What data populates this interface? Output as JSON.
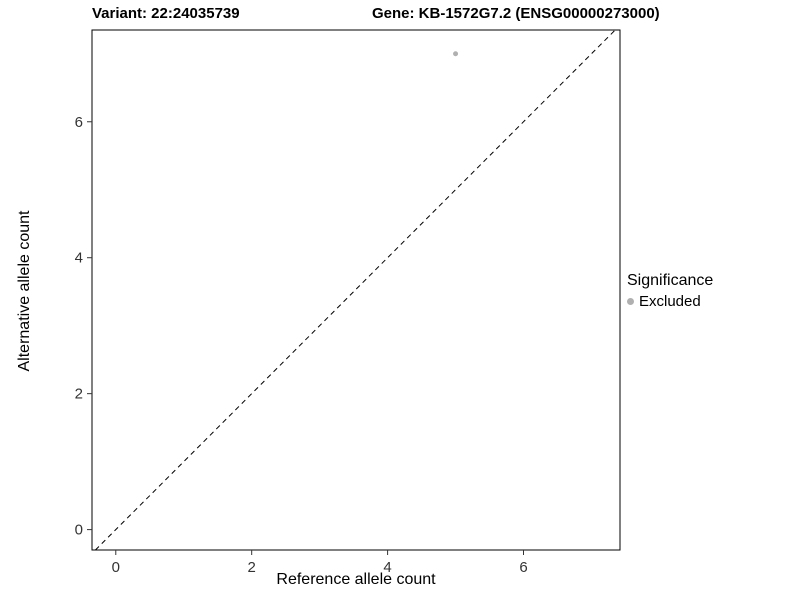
{
  "chart_data": {
    "type": "scatter",
    "title_left": "Variant: 22:24035739",
    "title_right": "Gene: KB-1572G7.2 (ENSG00000273000)",
    "xlabel": "Reference allele count",
    "ylabel": "Alternative allele count",
    "xlim": [
      -0.35,
      7.42
    ],
    "ylim": [
      -0.3,
      7.35
    ],
    "xticks": [
      0,
      2,
      4,
      6
    ],
    "yticks": [
      0,
      2,
      4,
      6
    ],
    "grid": false,
    "panel_border_color": "#000000",
    "tick_label_color": "#333333",
    "point_color": "#b0b0b0",
    "point_radius": 2.5,
    "points": [
      {
        "x": 5,
        "y": 7,
        "series": "Excluded"
      }
    ],
    "identity_line": {
      "style": "dashed",
      "color": "#000000",
      "equation": "y = x"
    },
    "legend_position": "right",
    "legend": {
      "title": "Significance",
      "items": [
        {
          "label": "Excluded",
          "color": "#b0b0b0"
        }
      ]
    }
  }
}
